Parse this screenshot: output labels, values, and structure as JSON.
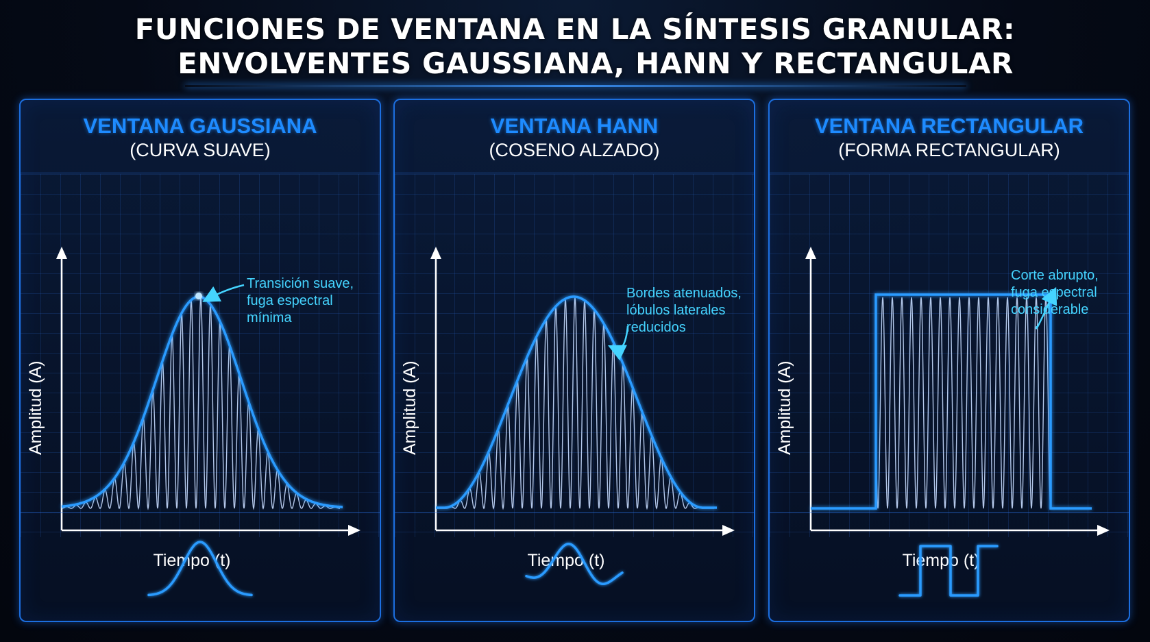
{
  "title": {
    "line1": "FUNCIONES DE VENTANA EN LA SÍNTESIS GRANULAR:",
    "line2": "ENVOLVENTES GAUSSIANA, HANN Y RECTANGULAR"
  },
  "colors": {
    "accent": "#1e8bff",
    "annotation": "#45d4ff",
    "envelope": "#2a9bff",
    "carrier": "#c7dcff",
    "background": "#050a16"
  },
  "panels": [
    {
      "id": "gauss",
      "title": "VENTANA GAUSSIANA",
      "subtitle": "(CURVA SUAVE)",
      "ylabel": "Amplitud (A)",
      "xlabel": "Tiempo (t)",
      "annotation": [
        "Transición suave,",
        "fuga espectral mínima"
      ],
      "envelope": "gaussian",
      "icon": "gaussian-bell-icon"
    },
    {
      "id": "hann",
      "title": "VENTANA HANN",
      "subtitle": "(COSENO ALZADO)",
      "ylabel": "Amplitud (A)",
      "xlabel": "Tiempo (t)",
      "annotation": [
        "Bordes atenuados,",
        "lóbulos laterales",
        "reducidos"
      ],
      "envelope": "hann",
      "icon": "sine-wave-icon"
    },
    {
      "id": "rect",
      "title": "VENTANA RECTANGULAR",
      "subtitle": "(FORMA RECTANGULAR)",
      "ylabel": "Amplitud (A)",
      "xlabel": "Tiempo (t)",
      "annotation": [
        "Corte abrupto,",
        "fuga espectral",
        "considerable"
      ],
      "envelope": "rectangular",
      "icon": "square-wave-icon"
    }
  ]
}
